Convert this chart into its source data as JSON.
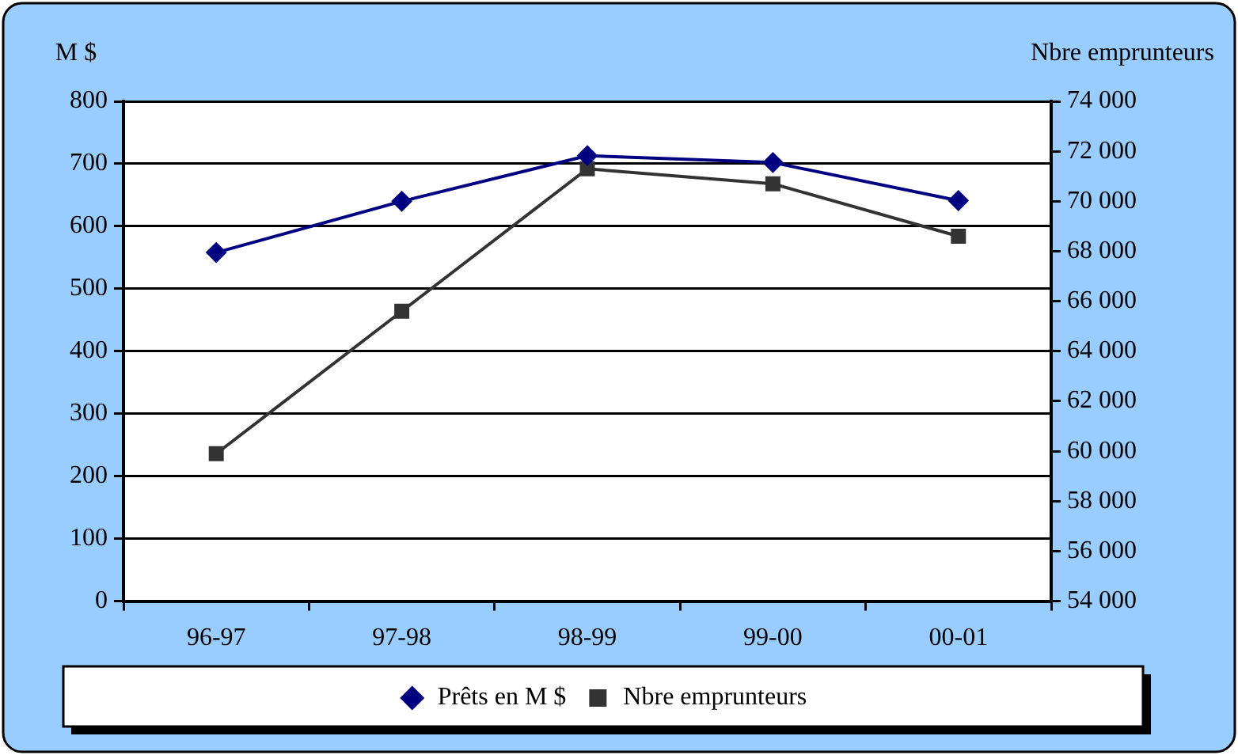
{
  "chart_data": {
    "type": "line",
    "ylabel": "M $",
    "y2label": "Nbre emprunteurs",
    "categories": [
      "96-97",
      "97-98",
      "98-99",
      "99-00",
      "00-01"
    ],
    "series": [
      {
        "name": "Prêts en M $",
        "color": "#000080",
        "values": [
          558,
          640,
          713,
          702,
          641
        ],
        "marker": "diamond"
      },
      {
        "name": "Nbre emprunteurs",
        "color": "#333333",
        "values": [
          59900,
          65600,
          71300,
          70700,
          68600
        ],
        "axis": "y2",
        "marker": "square"
      }
    ],
    "ylim": [
      0,
      800
    ],
    "yticks": [
      0,
      100,
      200,
      300,
      400,
      500,
      600,
      700,
      800
    ],
    "y2lim": [
      54000,
      74000
    ],
    "y2ticks": [
      {
        "value": 54000,
        "label": "54 000"
      },
      {
        "value": 56000,
        "label": "56 000"
      },
      {
        "value": 58000,
        "label": "58 000"
      },
      {
        "value": 60000,
        "label": "60 000"
      },
      {
        "value": 62000,
        "label": "62 000"
      },
      {
        "value": 64000,
        "label": "64 000"
      },
      {
        "value": 66000,
        "label": "66 000"
      },
      {
        "value": 68000,
        "label": "68 000"
      },
      {
        "value": 70000,
        "label": "70 000"
      },
      {
        "value": 72000,
        "label": "72 000"
      },
      {
        "value": 74000,
        "label": "74 000"
      }
    ],
    "grid": "y",
    "legend": "bottom",
    "line_style": "solid"
  }
}
